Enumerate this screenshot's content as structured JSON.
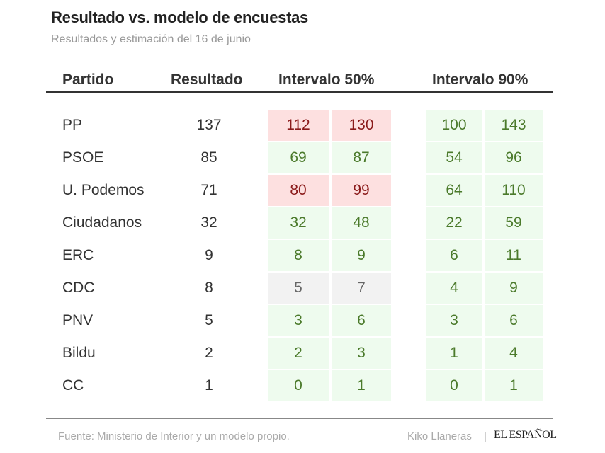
{
  "title": "Resultado vs. modelo de encuestas",
  "subtitle": "Resultados y estimación del 16 de junio",
  "colors": {
    "ok_bg": "#eefbee",
    "ok_text": "#4b7a2b",
    "miss_bg": "#fde0e0",
    "miss_text": "#8a1a1a",
    "neutral_bg": "#f2f2f2"
  },
  "chart_data": {
    "type": "table",
    "title": "Resultado vs. modelo de encuestas",
    "subtitle": "Resultados y estimación del 16 de junio",
    "columns": [
      "Partido",
      "Resultado",
      "Intervalo 50%",
      "Intervalo 90%"
    ],
    "rows": [
      {
        "party": "PP",
        "result": "137",
        "i50": [
          "112",
          "130"
        ],
        "i50_status": "miss",
        "i90": [
          "100",
          "143"
        ],
        "i90_status": "ok"
      },
      {
        "party": "PSOE",
        "result": "85",
        "i50": [
          "69",
          "87"
        ],
        "i50_status": "ok",
        "i90": [
          "54",
          "96"
        ],
        "i90_status": "ok"
      },
      {
        "party": "U. Podemos",
        "result": "71",
        "i50": [
          "80",
          "99"
        ],
        "i50_status": "miss",
        "i90": [
          "64",
          "110"
        ],
        "i90_status": "ok"
      },
      {
        "party": "Ciudadanos",
        "result": "32",
        "i50": [
          "32",
          "48"
        ],
        "i50_status": "ok",
        "i90": [
          "22",
          "59"
        ],
        "i90_status": "ok"
      },
      {
        "party": "ERC",
        "result": "9",
        "i50": [
          "8",
          "9"
        ],
        "i50_status": "ok",
        "i90": [
          "6",
          "11"
        ],
        "i90_status": "ok"
      },
      {
        "party": "CDC",
        "result": "8",
        "i50": [
          "5",
          "7"
        ],
        "i50_status": "neutral",
        "i90": [
          "4",
          "9"
        ],
        "i90_status": "ok"
      },
      {
        "party": "PNV",
        "result": "5",
        "i50": [
          "3",
          "6"
        ],
        "i50_status": "ok",
        "i90": [
          "3",
          "6"
        ],
        "i90_status": "ok"
      },
      {
        "party": "Bildu",
        "result": "2",
        "i50": [
          "2",
          "3"
        ],
        "i50_status": "ok",
        "i90": [
          "1",
          "4"
        ],
        "i90_status": "ok"
      },
      {
        "party": "CC",
        "result": "1",
        "i50": [
          "0",
          "1"
        ],
        "i50_status": "ok",
        "i90": [
          "0",
          "1"
        ],
        "i90_status": "ok"
      }
    ]
  },
  "footer": {
    "source": "Fuente: Ministerio de Interior y un modelo propio.",
    "author": "Kiko Llaneras",
    "separator": "|",
    "logo": "EL ESPAÑOL"
  }
}
